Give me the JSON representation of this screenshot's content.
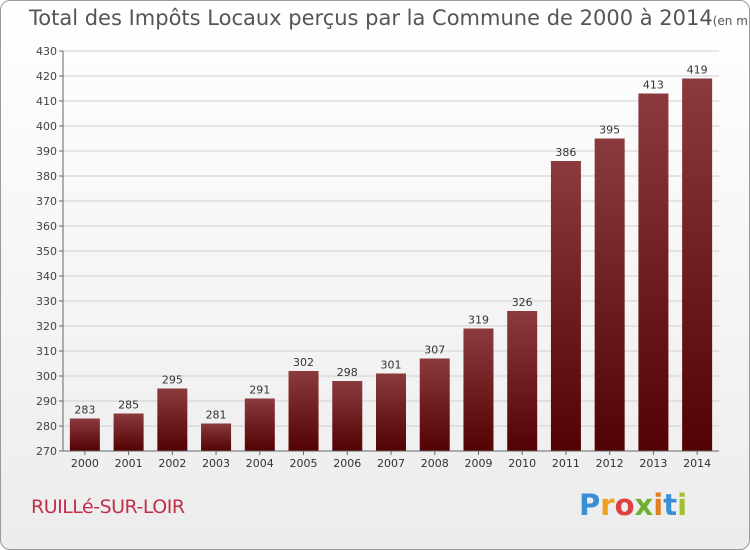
{
  "title": "Total des Impôts Locaux perçus par la Commune de 2000 à 2014",
  "unit_label": "(en milliers d'€)",
  "commune": "RUILLé-SUR-LOIR",
  "brand": {
    "letters": [
      "P",
      "r",
      "o",
      "x",
      "i",
      "t",
      "i"
    ],
    "colors": [
      "#3b8fd8",
      "#f0a020",
      "#e04040",
      "#70b030",
      "#e08020",
      "#3b8fd8",
      "#a0c030"
    ]
  },
  "colors": {
    "bar_top": "#8b3a3e",
    "bar_bottom": "#520202",
    "axis": "#666666",
    "grid": "#d0d0d0"
  },
  "chart_data": {
    "type": "bar",
    "title": "Total des Impôts Locaux perçus par la Commune de 2000 à 2014",
    "xlabel": "",
    "ylabel": "",
    "categories": [
      "2000",
      "2001",
      "2002",
      "2003",
      "2004",
      "2005",
      "2006",
      "2007",
      "2008",
      "2009",
      "2010",
      "2011",
      "2012",
      "2013",
      "2014"
    ],
    "values": [
      283,
      285,
      295,
      281,
      291,
      302,
      298,
      301,
      307,
      319,
      326,
      386,
      395,
      413,
      419
    ],
    "ylim": [
      270,
      430
    ],
    "yticks": [
      270,
      280,
      290,
      300,
      310,
      320,
      330,
      340,
      350,
      360,
      370,
      380,
      390,
      400,
      410,
      420,
      430
    ],
    "grid": true
  }
}
